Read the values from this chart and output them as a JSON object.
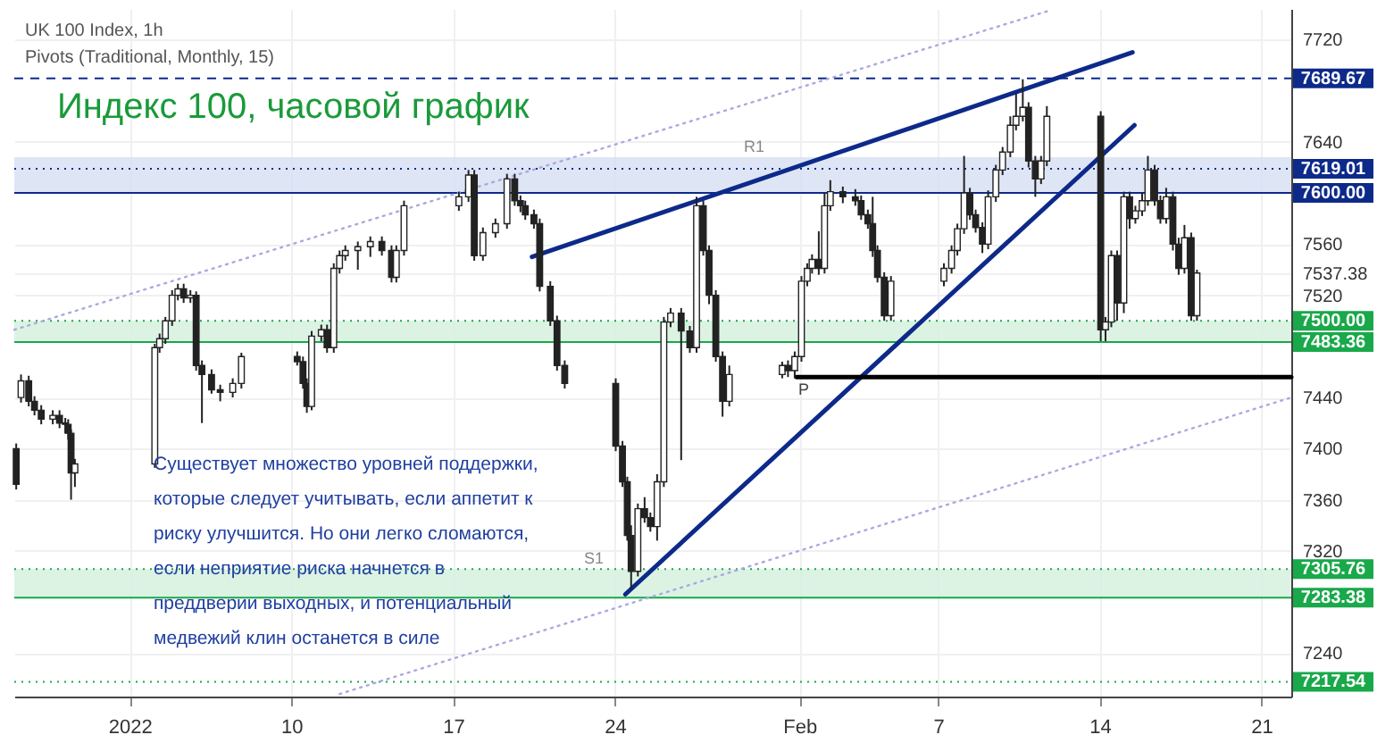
{
  "chart_data": {
    "type": "candlestick",
    "title": "Индекс 100, часовой график",
    "annotations": [
      "UK 100 Index, 1h",
      "Pivots (Traditional, Monthly, 15)",
      "Существует множество уровней поддержки,\nкоторые следует учитывать, если аппетит к\nриску улучшится. Но они легко сломаются,\nесли неприятие риска начнется в\nпреддверии выходных, и потенциальный\nмедвежий клин останется в силе"
    ],
    "xlim": [
      "2021-12-29T00:00",
      "2022-02-22T07:00"
    ],
    "ylim": [
      7206,
      7744
    ],
    "xticks": [
      {
        "value": "2022-01-03",
        "label": "2022"
      },
      {
        "value": "2022-01-10",
        "label": "10"
      },
      {
        "value": "2022-01-17",
        "label": "17"
      },
      {
        "value": "2022-01-24",
        "label": "24"
      },
      {
        "value": "2022-02-01",
        "label": "Feb"
      },
      {
        "value": "2022-02-07",
        "label": "7"
      },
      {
        "value": "2022-02-14",
        "label": "14"
      },
      {
        "value": "2022-02-21",
        "label": "21"
      }
    ],
    "yticks": [
      7240,
      7320,
      7360,
      7400,
      7440,
      7520,
      {
        "value": 7537.38,
        "label": "7537.38"
      },
      7560,
      7640,
      7720
    ],
    "grid": true,
    "bands": [
      {
        "axis": "y",
        "from": 7600,
        "to": 7628,
        "label": "R1",
        "color": "#d6def2"
      },
      {
        "axis": "y",
        "from": 7483.36,
        "to": 7500,
        "label": null,
        "color": "#d3f0dd"
      },
      {
        "axis": "y",
        "from": 7283.38,
        "to": 7305.76,
        "label": "S1",
        "color": "#d3f0dd"
      }
    ],
    "ref_lines": [
      {
        "axis": "y",
        "value": 7689.67,
        "label": "7689.67",
        "color": "#0d2a8a",
        "line_style": "dashed"
      },
      {
        "axis": "y",
        "value": 7619.01,
        "label": "7619.01",
        "color": "#0d2a8a",
        "line_style": "dotted"
      },
      {
        "axis": "y",
        "value": 7600.0,
        "label": "7600.00",
        "color": "#0d2a8a",
        "line_style": "solid"
      },
      {
        "axis": "y",
        "value": 7500.0,
        "label": "7500.00",
        "color": "#19a84a",
        "line_style": "dotted"
      },
      {
        "axis": "y",
        "value": 7483.36,
        "label": "7483.36",
        "color": "#19a84a",
        "line_style": "solid"
      },
      {
        "axis": "y",
        "value": 7305.76,
        "label": "7305.76",
        "color": "#19a84a",
        "line_style": "dotted"
      },
      {
        "axis": "y",
        "value": 7283.38,
        "label": "7283.38",
        "color": "#19a84a",
        "line_style": "solid"
      },
      {
        "axis": "y",
        "value": 7217.54,
        "label": "7217.54",
        "color": "#19a84a",
        "line_style": "dotted"
      }
    ],
    "series": [
      {
        "color": "#222222",
        "x": [
          "2021-12-29T02:00",
          "2021-12-29T07:00",
          "2021-12-29T15:00",
          "2021-12-29T21:00",
          "2021-12-30T04:00",
          "2021-12-30T16:00",
          "2021-12-30T23:00",
          "2021-12-31T05:00",
          "2021-12-31T08:00",
          "2021-12-31T11:00",
          "2021-12-31T15:00",
          "2022-01-04T02:00",
          "2022-01-04T07:00",
          "2022-01-04T13:00",
          "2022-01-04T20:00",
          "2022-01-05T02:00",
          "2022-01-05T08:00",
          "2022-01-05T15:00",
          "2022-01-05T21:00",
          "2022-01-06T03:00",
          "2022-01-06T13:00",
          "2022-01-06T22:00",
          "2022-01-07T11:00",
          "2022-01-07T20:00",
          "2022-01-10T06:00",
          "2022-01-10T12:00",
          "2022-01-10T16:00",
          "2022-01-10T21:00",
          "2022-01-11T07:00",
          "2022-01-11T13:00",
          "2022-01-11T20:00",
          "2022-01-12T02:00",
          "2022-01-12T08:00",
          "2022-01-12T21:00",
          "2022-01-13T10:00",
          "2022-01-13T22:00",
          "2022-01-14T08:00",
          "2022-01-14T13:00",
          "2022-01-14T21:00",
          "2022-01-17T06:00",
          "2022-01-17T16:00",
          "2022-01-17T22:00",
          "2022-01-18T07:00",
          "2022-01-18T20:00",
          "2022-01-19T08:00",
          "2022-01-19T16:00",
          "2022-01-19T22:00",
          "2022-01-20T03:00",
          "2022-01-20T12:00",
          "2022-01-20T18:00",
          "2022-01-21T05:00",
          "2022-01-21T12:00",
          "2022-01-21T20:00",
          "2022-01-24T01:00",
          "2022-01-24T08:00",
          "2022-01-24T13:00",
          "2022-01-24T17:00",
          "2022-01-25T00:00",
          "2022-01-25T07:00",
          "2022-01-25T13:00",
          "2022-01-25T20:00",
          "2022-01-26T03:00",
          "2022-01-26T10:00",
          "2022-01-26T21:00",
          "2022-01-27T06:00",
          "2022-01-27T13:00",
          "2022-01-27T20:00",
          "2022-01-28T02:00",
          "2022-01-28T09:00",
          "2022-01-28T16:00",
          "2022-01-28T23:00",
          "2022-01-31T06:00",
          "2022-01-31T12:00",
          "2022-01-31T19:00",
          "2022-02-01T02:00",
          "2022-02-01T08:00",
          "2022-02-01T13:00",
          "2022-02-01T20:00",
          "2022-02-02T02:00",
          "2022-02-02T08:00",
          "2022-02-02T21:00",
          "2022-02-03T10:00",
          "2022-02-03T16:00",
          "2022-02-03T23:00",
          "2022-02-04T04:00",
          "2022-02-04T09:00",
          "2022-02-04T16:00",
          "2022-02-04T23:00",
          "2022-02-07T06:00",
          "2022-02-07T14:00",
          "2022-02-07T20:00",
          "2022-02-08T03:00",
          "2022-02-08T09:00",
          "2022-02-08T15:00",
          "2022-02-08T22:00",
          "2022-02-09T04:00",
          "2022-02-09T12:00",
          "2022-02-09T19:00",
          "2022-02-10T03:00",
          "2022-02-10T09:00",
          "2022-02-10T16:00",
          "2022-02-10T22:00",
          "2022-02-11T05:00",
          "2022-02-11T11:00",
          "2022-02-11T17:00",
          "2022-02-14T01:00",
          "2022-02-14T06:00",
          "2022-02-14T12:00",
          "2022-02-14T18:00",
          "2022-02-15T01:00",
          "2022-02-15T07:00",
          "2022-02-15T13:00",
          "2022-02-15T20:00",
          "2022-02-16T02:00",
          "2022-02-16T09:00",
          "2022-02-16T15:00",
          "2022-02-16T21:00",
          "2022-02-17T04:00",
          "2022-02-17T10:00",
          "2022-02-17T16:00",
          "2022-02-17T23:00",
          "2022-02-18T05:00"
        ],
        "ohlc": [
          [
            7400,
            7404,
            7368,
            7372
          ],
          [
            7440,
            7458,
            7436,
            7453
          ],
          [
            7453,
            7457,
            7433,
            7437
          ],
          [
            7437,
            7441,
            7426,
            7430
          ],
          [
            7430,
            7434,
            7419,
            7423
          ],
          [
            7423,
            7430,
            7419,
            7426
          ],
          [
            7426,
            7430,
            7416,
            7420
          ],
          [
            7420,
            7424,
            7412,
            7419
          ],
          [
            7419,
            7423,
            7407,
            7412
          ],
          [
            7412,
            7415,
            7360,
            7381
          ],
          [
            7381,
            7392,
            7370,
            7388
          ],
          [
            7388,
            7482,
            7385,
            7479
          ],
          [
            7479,
            7490,
            7475,
            7486
          ],
          [
            7486,
            7503,
            7482,
            7500
          ],
          [
            7500,
            7524,
            7496,
            7520
          ],
          [
            7520,
            7529,
            7516,
            7525
          ],
          [
            7525,
            7529,
            7514,
            7518
          ],
          [
            7518,
            7524,
            7514,
            7520
          ],
          [
            7520,
            7523,
            7461,
            7465
          ],
          [
            7465,
            7469,
            7420,
            7458
          ],
          [
            7458,
            7462,
            7443,
            7446
          ],
          [
            7446,
            7450,
            7437,
            7444
          ],
          [
            7444,
            7455,
            7440,
            7451
          ],
          [
            7451,
            7475,
            7447,
            7472
          ],
          [
            7472,
            7476,
            7465,
            7468
          ],
          [
            7468,
            7472,
            7447,
            7451
          ],
          [
            7451,
            7455,
            7428,
            7433
          ],
          [
            7433,
            7492,
            7430,
            7488
          ],
          [
            7488,
            7497,
            7484,
            7493
          ],
          [
            7493,
            7497,
            7475,
            7479
          ],
          [
            7479,
            7545,
            7475,
            7541
          ],
          [
            7541,
            7555,
            7537,
            7551
          ],
          [
            7551,
            7559,
            7547,
            7555
          ],
          [
            7555,
            7562,
            7540,
            7558
          ],
          [
            7558,
            7566,
            7550,
            7562
          ],
          [
            7562,
            7566,
            7551,
            7555
          ],
          [
            7555,
            7559,
            7530,
            7534
          ],
          [
            7534,
            7559,
            7530,
            7555
          ],
          [
            7555,
            7594,
            7551,
            7590
          ],
          [
            7590,
            7601,
            7586,
            7597
          ],
          [
            7597,
            7618,
            7593,
            7614
          ],
          [
            7614,
            7618,
            7547,
            7551
          ],
          [
            7551,
            7573,
            7547,
            7569
          ],
          [
            7569,
            7580,
            7565,
            7576
          ],
          [
            7576,
            7615,
            7572,
            7611
          ],
          [
            7611,
            7615,
            7590,
            7594
          ],
          [
            7594,
            7598,
            7585,
            7590
          ],
          [
            7590,
            7594,
            7579,
            7583
          ],
          [
            7583,
            7587,
            7572,
            7576
          ],
          [
            7576,
            7580,
            7523,
            7527
          ],
          [
            7527,
            7531,
            7496,
            7500
          ],
          [
            7500,
            7504,
            7461,
            7465
          ],
          [
            7465,
            7469,
            7447,
            7451
          ],
          [
            7451,
            7455,
            7398,
            7402
          ],
          [
            7402,
            7406,
            7370,
            7374
          ],
          [
            7374,
            7378,
            7328,
            7332
          ],
          [
            7332,
            7340,
            7290,
            7304
          ],
          [
            7304,
            7357,
            7300,
            7353
          ],
          [
            7353,
            7362,
            7342,
            7346
          ],
          [
            7346,
            7350,
            7335,
            7339
          ],
          [
            7339,
            7380,
            7328,
            7374
          ],
          [
            7374,
            7503,
            7370,
            7499
          ],
          [
            7499,
            7510,
            7495,
            7506
          ],
          [
            7506,
            7510,
            7391,
            7492
          ],
          [
            7492,
            7496,
            7475,
            7479
          ],
          [
            7479,
            7597,
            7475,
            7590
          ],
          [
            7590,
            7594,
            7551,
            7555
          ],
          [
            7555,
            7559,
            7513,
            7520
          ],
          [
            7520,
            7524,
            7468,
            7472
          ],
          [
            7472,
            7476,
            7425,
            7437
          ],
          [
            7437,
            7465,
            7433,
            7458
          ],
          [
            7458,
            7468,
            7455,
            7465
          ],
          [
            7465,
            7469,
            7456,
            7461
          ],
          [
            7461,
            7476,
            7455,
            7472
          ],
          [
            7472,
            7535,
            7468,
            7531
          ],
          [
            7531,
            7545,
            7527,
            7541
          ],
          [
            7541,
            7552,
            7537,
            7548
          ],
          [
            7548,
            7570,
            7536,
            7541
          ],
          [
            7541,
            7600,
            7537,
            7590
          ],
          [
            7590,
            7610,
            7586,
            7601
          ],
          [
            7601,
            7605,
            7592,
            7597
          ],
          [
            7597,
            7603,
            7590,
            7594
          ],
          [
            7594,
            7598,
            7579,
            7583
          ],
          [
            7583,
            7587,
            7572,
            7576
          ],
          [
            7576,
            7597,
            7550,
            7555
          ],
          [
            7555,
            7559,
            7530,
            7534
          ],
          [
            7534,
            7538,
            7500,
            7504
          ],
          [
            7504,
            7535,
            7500,
            7531
          ],
          [
            7531,
            7545,
            7527,
            7541
          ],
          [
            7541,
            7559,
            7537,
            7555
          ],
          [
            7555,
            7576,
            7551,
            7572
          ],
          [
            7572,
            7629,
            7568,
            7600
          ],
          [
            7600,
            7604,
            7579,
            7583
          ],
          [
            7583,
            7587,
            7569,
            7573
          ],
          [
            7573,
            7577,
            7553,
            7560
          ],
          [
            7560,
            7602,
            7556,
            7597
          ],
          [
            7597,
            7622,
            7593,
            7618
          ],
          [
            7618,
            7636,
            7614,
            7632
          ],
          [
            7632,
            7660,
            7628,
            7653
          ],
          [
            7653,
            7678,
            7649,
            7660
          ],
          [
            7660,
            7689,
            7656,
            7667
          ],
          [
            7667,
            7671,
            7620,
            7625
          ],
          [
            7625,
            7629,
            7597,
            7611
          ],
          [
            7611,
            7629,
            7607,
            7625
          ],
          [
            7625,
            7668,
            7621,
            7660
          ],
          [
            7660,
            7664,
            7484,
            7493
          ],
          [
            7493,
            7503,
            7484,
            7499
          ],
          [
            7499,
            7555,
            7495,
            7551
          ],
          [
            7551,
            7555,
            7500,
            7514
          ],
          [
            7514,
            7601,
            7506,
            7597
          ],
          [
            7597,
            7601,
            7572,
            7580
          ],
          [
            7580,
            7590,
            7576,
            7586
          ],
          [
            7586,
            7600,
            7582,
            7594
          ],
          [
            7594,
            7629,
            7590,
            7618
          ],
          [
            7618,
            7622,
            7590,
            7594
          ],
          [
            7594,
            7598,
            7576,
            7580
          ],
          [
            7580,
            7604,
            7576,
            7597
          ],
          [
            7597,
            7601,
            7555,
            7560
          ],
          [
            7560,
            7565,
            7536,
            7541
          ],
          [
            7541,
            7575,
            7537,
            7565
          ],
          [
            7565,
            7569,
            7500,
            7504
          ],
          [
            7504,
            7540,
            7500,
            7537.38
          ]
        ]
      },
      {
        "type": "line",
        "color": "#0d2a8a",
        "line_style": "solid",
        "x": [
          "2022-01-20T10:00",
          "2022-02-15T10:00"
        ],
        "values": [
          7550,
          7710
        ]
      },
      {
        "type": "line",
        "color": "#0d2a8a",
        "line_style": "solid",
        "x": [
          "2022-01-24T11:00",
          "2022-02-15T12:00"
        ],
        "values": [
          7286,
          7653
        ]
      },
      {
        "type": "line",
        "color": "#a9a9e0",
        "line_style": "dotted",
        "x": [
          "2021-12-29T00:00",
          "2022-02-11T21:00"
        ],
        "values": [
          7493,
          7743
        ]
      },
      {
        "type": "line",
        "color": "#a9a9e0",
        "line_style": "dotted",
        "x": [
          "2022-01-12T02:00",
          "2022-02-22T07:00"
        ],
        "values": [
          7208,
          7440
        ]
      },
      {
        "type": "line",
        "name": "P",
        "color": "#000000",
        "line_style": "solid",
        "x": [
          "2022-01-31T21:00",
          "2022-02-22T07:00"
        ],
        "values": [
          7456,
          7456
        ]
      }
    ]
  }
}
